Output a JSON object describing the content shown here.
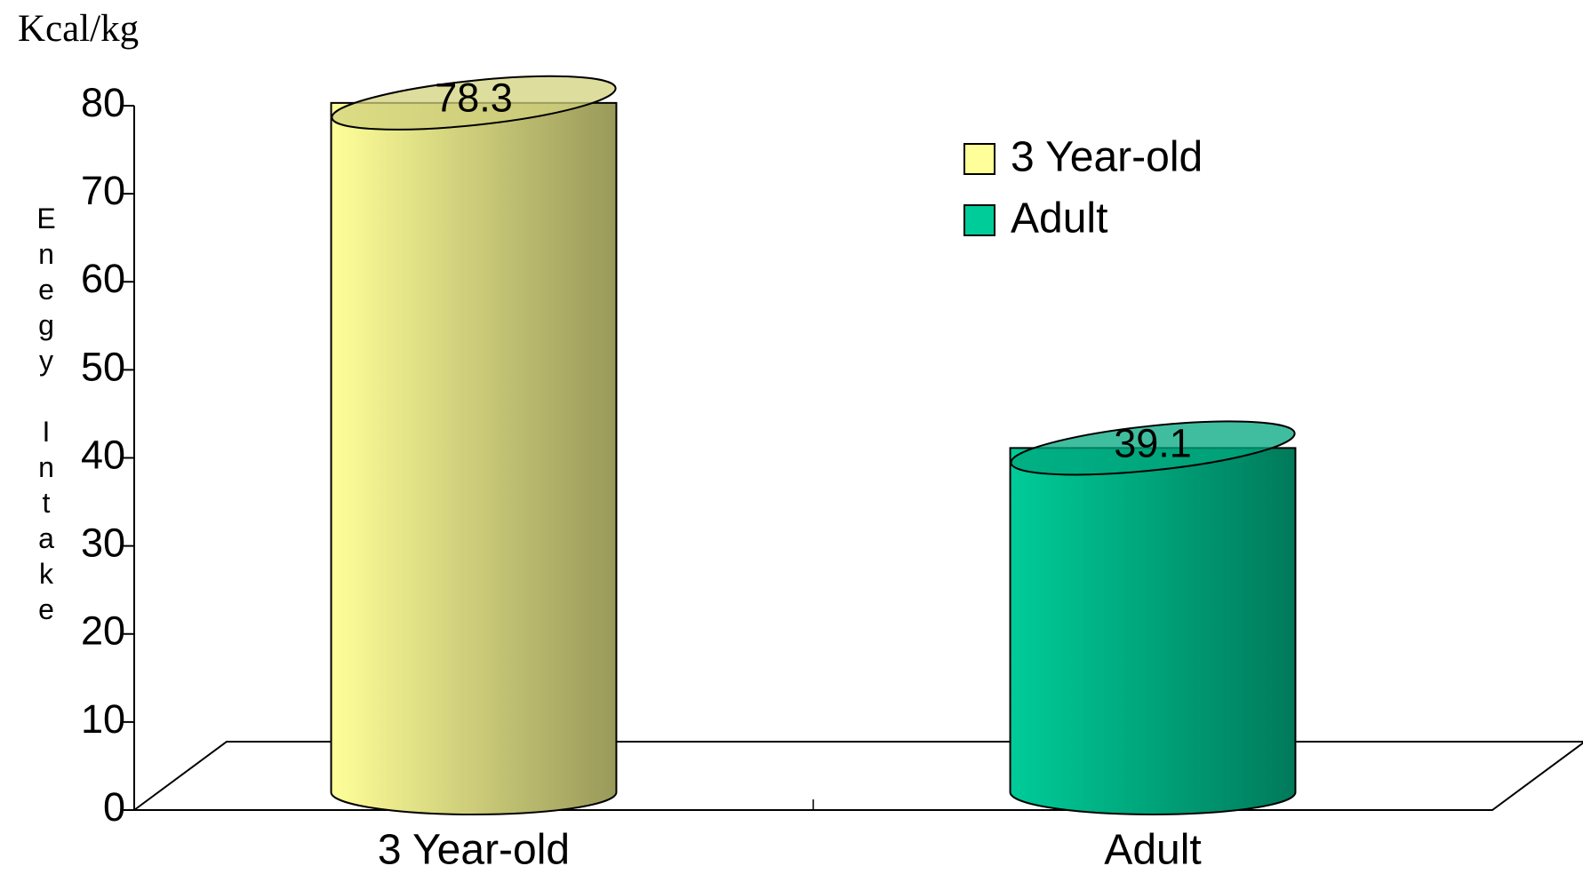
{
  "chart_data": {
    "type": "cylinder",
    "unit_label": "Kcal/kg",
    "y_axis_label": "Enegy Intake",
    "categories": [
      "3 Year-old",
      "Adult"
    ],
    "series": [
      {
        "name": "3 Year-old",
        "color": "#ffff99",
        "values": [
          78.3,
          null
        ]
      },
      {
        "name": "Adult",
        "color": "#00cc99",
        "values": [
          null,
          39.1
        ]
      }
    ],
    "ylim": [
      0,
      80
    ],
    "yticks": [
      0,
      10,
      20,
      30,
      40,
      50,
      60,
      70,
      80
    ],
    "legend": "top-right"
  }
}
